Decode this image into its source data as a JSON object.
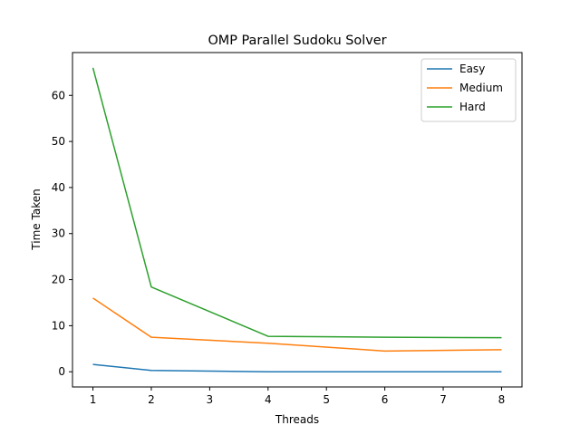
{
  "chart_data": {
    "type": "line",
    "title": "OMP Parallel Sudoku Solver",
    "xlabel": "Threads",
    "ylabel": "Time Taken",
    "x": [
      1,
      2,
      4,
      6,
      8
    ],
    "xlim": [
      0.65,
      8.35
    ],
    "ylim": [
      -3.3,
      69.3
    ],
    "xticks": [
      1,
      2,
      3,
      4,
      5,
      6,
      7,
      8
    ],
    "yticks": [
      0,
      10,
      20,
      30,
      40,
      50,
      60
    ],
    "grid": false,
    "legend_position": "top-right",
    "series": [
      {
        "name": "Easy",
        "color": "#1f77b4",
        "values": [
          1.6,
          0.3,
          0.0,
          0.0,
          0.0
        ]
      },
      {
        "name": "Medium",
        "color": "#ff7f0e",
        "values": [
          16.0,
          7.5,
          6.2,
          4.5,
          4.8
        ]
      },
      {
        "name": "Hard",
        "color": "#2ca02c",
        "values": [
          66.0,
          18.4,
          7.7,
          7.5,
          7.4
        ]
      }
    ]
  }
}
